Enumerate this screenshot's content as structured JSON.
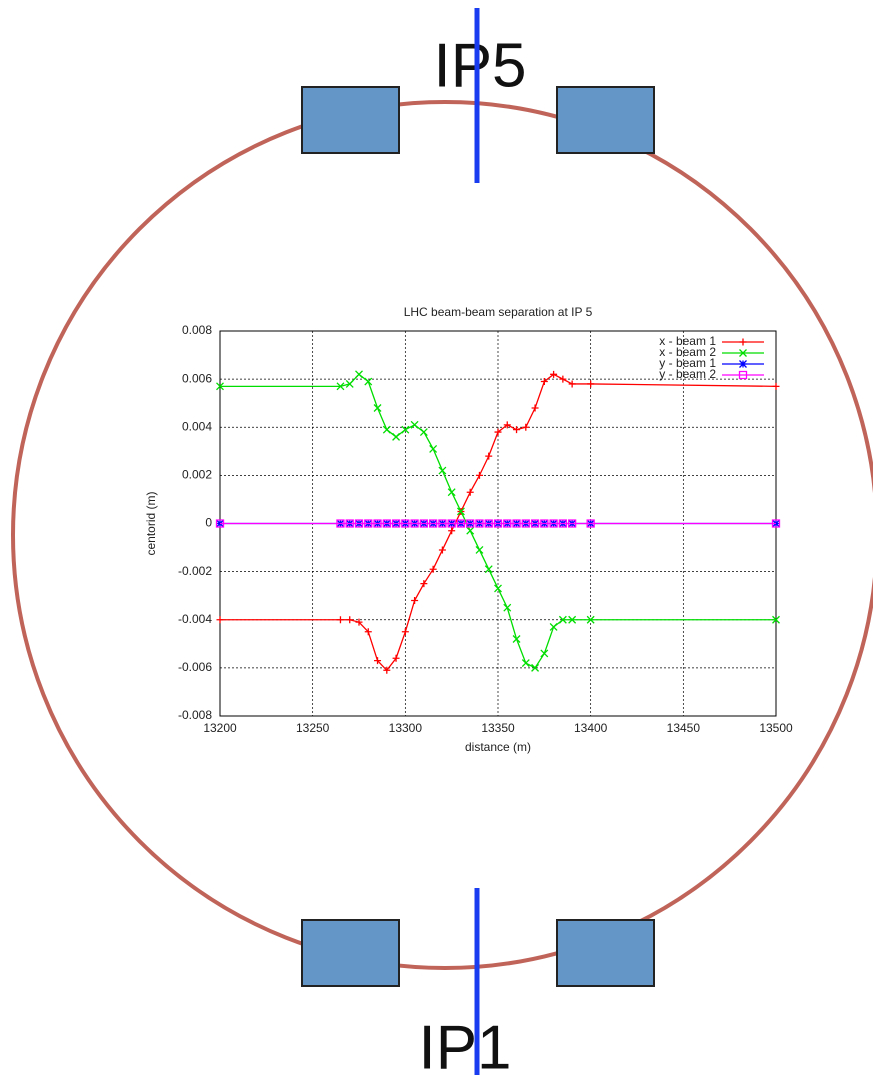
{
  "diagram": {
    "labels": [
      "IP5",
      "IP1"
    ]
  },
  "chart_data": {
    "type": "line",
    "title": "LHC beam-beam separation at IP 5",
    "xlabel": "distance (m)",
    "ylabel": "centorid (m)",
    "x": [
      13200,
      13265,
      13270,
      13275,
      13280,
      13285,
      13290,
      13295,
      13300,
      13305,
      13310,
      13315,
      13320,
      13325,
      13330,
      13335,
      13340,
      13345,
      13350,
      13355,
      13360,
      13365,
      13370,
      13375,
      13380,
      13385,
      13390,
      13400,
      13500
    ],
    "series": [
      {
        "name": "x - beam 1",
        "color": "#ff0000",
        "marker": "plus",
        "values": [
          -0.004,
          -0.004,
          -0.004,
          -0.0041,
          -0.0045,
          -0.0057,
          -0.0061,
          -0.0056,
          -0.0045,
          -0.0032,
          -0.0025,
          -0.0019,
          -0.0011,
          -0.0003,
          0.0005,
          0.0013,
          0.002,
          0.0028,
          0.0038,
          0.0041,
          0.0039,
          0.004,
          0.0048,
          0.0059,
          0.0062,
          0.006,
          0.0058,
          0.0058,
          0.0057
        ]
      },
      {
        "name": "x - beam 2",
        "color": "#00dd00",
        "marker": "cross",
        "values": [
          0.0057,
          0.0057,
          0.0058,
          0.0062,
          0.0059,
          0.0048,
          0.0039,
          0.0036,
          0.0039,
          0.0041,
          0.0038,
          0.0031,
          0.0022,
          0.0013,
          0.0005,
          -0.0003,
          -0.0011,
          -0.0019,
          -0.0027,
          -0.0035,
          -0.0048,
          -0.0058,
          -0.006,
          -0.0054,
          -0.0043,
          -0.004,
          -0.004,
          -0.004,
          -0.004
        ]
      },
      {
        "name": "y - beam 1",
        "color": "#0000ff",
        "marker": "star",
        "values": [
          0,
          0,
          0,
          0,
          0,
          0,
          0,
          0,
          0,
          0,
          0,
          0,
          0,
          0,
          0,
          0,
          0,
          0,
          0,
          0,
          0,
          0,
          0,
          0,
          0,
          0,
          0,
          0,
          0
        ]
      },
      {
        "name": "y - beam 2",
        "color": "#ff00ff",
        "marker": "square",
        "values": [
          0,
          0,
          0,
          0,
          0,
          0,
          0,
          0,
          0,
          0,
          0,
          0,
          0,
          0,
          0,
          0,
          0,
          0,
          0,
          0,
          0,
          0,
          0,
          0,
          0,
          0,
          0,
          0,
          0
        ]
      }
    ],
    "xlim": [
      13200,
      13500
    ],
    "xticks": [
      13200,
      13250,
      13300,
      13350,
      13400,
      13450,
      13500
    ],
    "ylim": [
      -0.008,
      0.008
    ],
    "yticks": [
      -0.008,
      -0.006,
      -0.004,
      -0.002,
      0,
      0.002,
      0.004,
      0.006,
      0.008
    ],
    "grid": true,
    "legend": "top-right"
  }
}
